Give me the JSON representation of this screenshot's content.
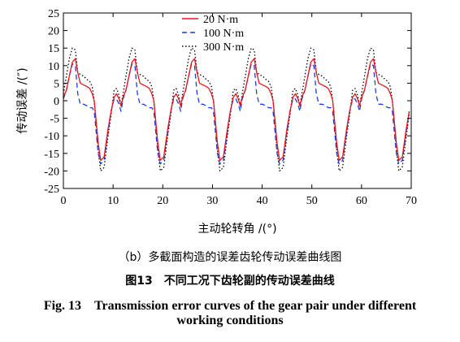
{
  "chart_data": {
    "type": "line",
    "title": "",
    "xlabel": "主动轮转角 /(°)",
    "ylabel": "传动误差 /(″)",
    "xlim": [
      0,
      70
    ],
    "ylim": [
      -25,
      25
    ],
    "xticks": [
      0,
      10,
      20,
      30,
      40,
      50,
      60,
      70
    ],
    "yticks": [
      25,
      20,
      15,
      10,
      5,
      0,
      -5,
      -10,
      -15,
      -20,
      -25
    ],
    "grid": false,
    "legend_position": "top-center",
    "period_deg": 12,
    "x": [
      0,
      0.6,
      1.2,
      1.8,
      2.4,
      2.9,
      3.4,
      4.1,
      4.8,
      5.3,
      5.8,
      6.2,
      6.6,
      7.0,
      7.5,
      8.2,
      9.0,
      9.6,
      10.2,
      10.7,
      11.2,
      11.6,
      12.0
    ],
    "series": [
      {
        "name": "20 N·m",
        "color": "#e8141c",
        "dash": "solid",
        "values": [
          1,
          3,
          7,
          11,
          12,
          8,
          5,
          4.5,
          4,
          3.5,
          2,
          0,
          -6,
          -12,
          -17,
          -16,
          -8,
          -3,
          1,
          2,
          0.5,
          -1.5,
          1
        ]
      },
      {
        "name": "100 N·m",
        "color": "#1a3fd6",
        "dash": "dashed",
        "values": [
          0.5,
          3,
          7,
          10.5,
          10,
          2,
          -1,
          -1,
          -1.5,
          -2,
          -2,
          -3,
          -9,
          -15,
          -18,
          -17,
          -9,
          -3,
          0.5,
          0.5,
          -1,
          -3,
          0.5
        ]
      },
      {
        "name": "300 N·m",
        "color": "#000000",
        "dash": "dotted",
        "values": [
          2,
          7,
          12,
          15,
          14.5,
          8,
          7.5,
          7,
          6,
          5.5,
          4,
          0,
          -7,
          -14,
          -20,
          -19,
          -10,
          -4,
          3,
          3.5,
          1.5,
          -1.5,
          2
        ]
      }
    ]
  },
  "captions": {
    "sub": "（b）多截面构造的误差齿轮传动误差曲线图",
    "figure_cn": "图13　不同工况下齿轮副的传动误差曲线",
    "figure_en_line1": "Fig. 13　Transmission error curves of the gear pair under different",
    "figure_en_line2": "working conditions"
  }
}
